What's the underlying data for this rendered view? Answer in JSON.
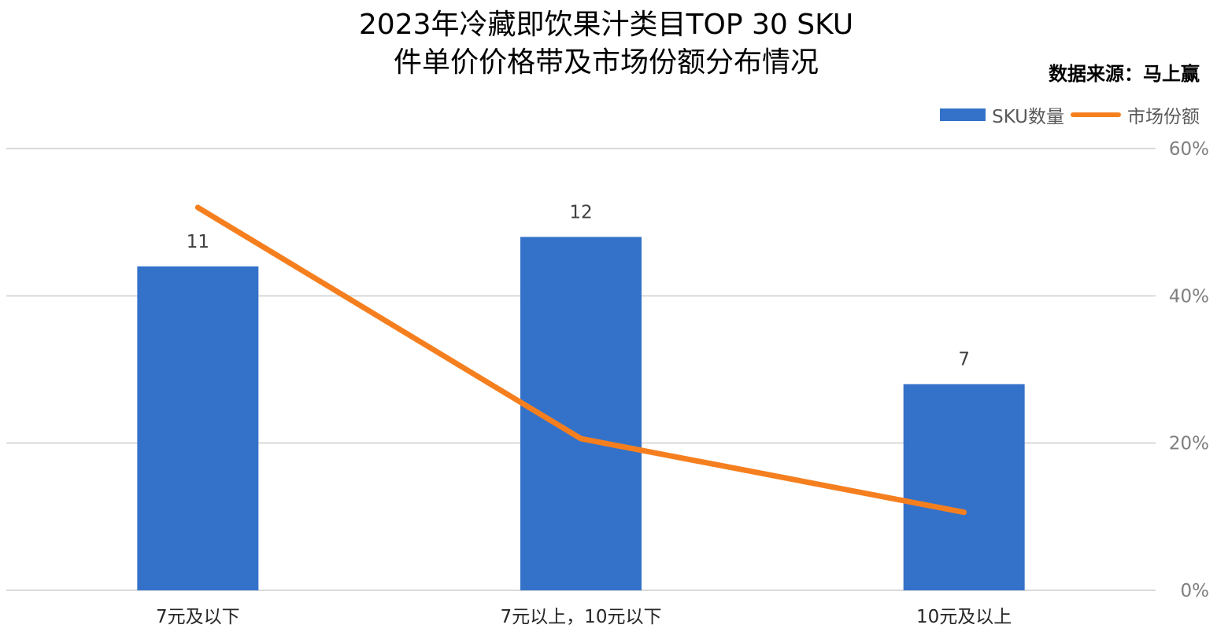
{
  "title_line1": "2023年冷藏即饮果汁类目TOP 30 SKU",
  "title_line2": "件单价价格带及市场份额分布情况",
  "source": "数据来源：马上赢",
  "chart_data": {
    "type": "bar",
    "categories": [
      "7元及以下",
      "7元以上，10元以下",
      "10元及以上"
    ],
    "series": [
      {
        "name": "SKU数量",
        "kind": "bar",
        "axis": "left",
        "values": [
          11,
          12,
          7
        ],
        "color": "#3472c9"
      },
      {
        "name": "市场份额",
        "kind": "line",
        "axis": "right",
        "values": [
          0.52,
          0.206,
          0.106
        ],
        "color": "#f57f1f"
      }
    ],
    "left_axis": {
      "range": [
        0,
        15
      ],
      "show_ticks": false
    },
    "right_axis": {
      "range": [
        0,
        0.6
      ],
      "ticks": [
        "0%",
        "20%",
        "40%",
        "60%"
      ]
    },
    "grid": true,
    "legend_position": "top-right",
    "data_labels": [
      "11",
      "12",
      "7"
    ]
  }
}
